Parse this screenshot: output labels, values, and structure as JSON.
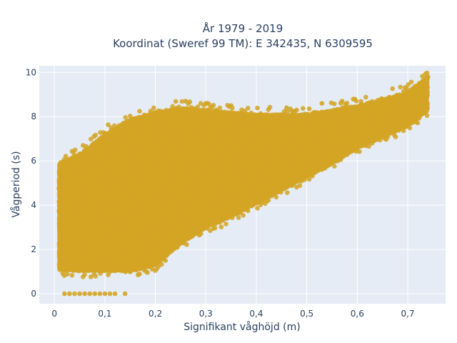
{
  "chart_data": {
    "type": "scatter",
    "title_line1": "År 1979 - 2019",
    "title_line2": "Koordinat (Sweref 99 TM): E 342435, N 6309595",
    "xlabel": "Signifikant våghöjd (m)",
    "ylabel": "Vågperiod (s)",
    "xlim": [
      -0.03,
      0.775
    ],
    "ylim": [
      -0.45,
      10.3
    ],
    "x_ticks": [
      0,
      0.1,
      0.2,
      0.3,
      0.4,
      0.5,
      0.6,
      0.7
    ],
    "x_tick_labels": [
      "0",
      "0,1",
      "0,2",
      "0,3",
      "0,4",
      "0,5",
      "0,6",
      "0,7"
    ],
    "y_ticks": [
      0,
      2,
      4,
      6,
      8,
      10
    ],
    "y_tick_labels": [
      "0",
      "2",
      "4",
      "6",
      "8",
      "10"
    ],
    "grid": true,
    "colors": {
      "marker": "#d4a424",
      "plot_bg": "#e5ecf6",
      "grid": "#ffffff",
      "text": "#2a3f5f"
    },
    "series": [
      {
        "envelope": [
          [
            0.01,
            1.1,
            5.9
          ],
          [
            0.05,
            1.05,
            6.3
          ],
          [
            0.1,
            1.05,
            7.2
          ],
          [
            0.15,
            1.05,
            7.9
          ],
          [
            0.2,
            1.3,
            8.2
          ],
          [
            0.25,
            2.3,
            8.4
          ],
          [
            0.3,
            3.0,
            8.3
          ],
          [
            0.35,
            3.5,
            8.2
          ],
          [
            0.4,
            4.1,
            8.1
          ],
          [
            0.45,
            4.7,
            8.1
          ],
          [
            0.5,
            5.3,
            8.1
          ],
          [
            0.55,
            5.9,
            8.3
          ],
          [
            0.6,
            6.6,
            8.5
          ],
          [
            0.65,
            7.1,
            8.8
          ],
          [
            0.7,
            7.6,
            9.1
          ],
          [
            0.74,
            8.3,
            9.8
          ]
        ],
        "zero_period_points": [
          0.02,
          0.03,
          0.04,
          0.05,
          0.06,
          0.07,
          0.08,
          0.09,
          0.1,
          0.11,
          0.12,
          0.14
        ],
        "outliers": [
          [
            0.01,
            2.9
          ],
          [
            0.01,
            3.8
          ],
          [
            0.01,
            1.2
          ],
          [
            0.13,
            1.5
          ],
          [
            0.2,
            1.5
          ],
          [
            0.22,
            1.5
          ],
          [
            0.26,
            8.7
          ],
          [
            0.3,
            8.6
          ],
          [
            0.32,
            8.3
          ],
          [
            0.35,
            8.5
          ],
          [
            0.46,
            8.4
          ],
          [
            0.53,
            8.6
          ],
          [
            0.57,
            8.7
          ],
          [
            0.62,
            8.6
          ],
          [
            0.74,
            9.8
          ]
        ]
      }
    ]
  }
}
